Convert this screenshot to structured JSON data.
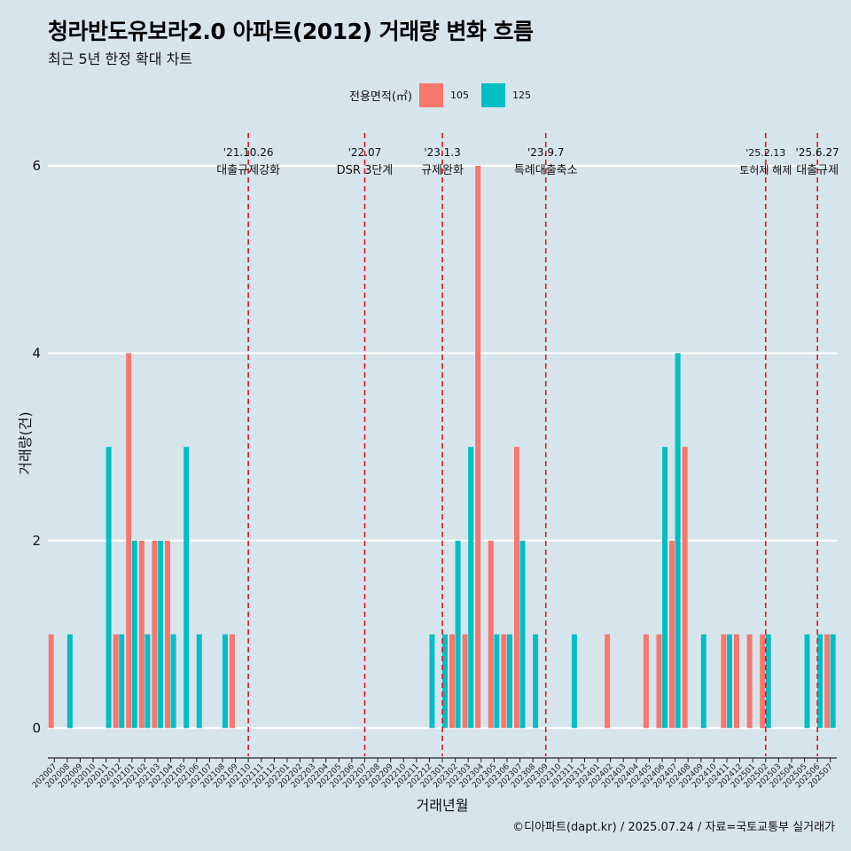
{
  "title": "청라반도유보라2.0 아파트(2012) 거래량 변화 흐름",
  "subtitle": "최근 5년 한정 확대 차트",
  "caption": "©디아파트(dapt.kr) / 2025.07.24 / 자료=국토교통부 실거래가",
  "legend": {
    "title": "전용면적(㎡)",
    "items": [
      {
        "label": "105",
        "color": "#f8766d"
      },
      {
        "label": "125",
        "color": "#00bfc4"
      }
    ]
  },
  "chart_data": {
    "type": "bar",
    "xlabel": "거래년월",
    "ylabel": "거래량(건)",
    "ylim": [
      -0.3,
      6.35
    ],
    "yticks": [
      0,
      2,
      4,
      6
    ],
    "grid": true,
    "legend_position": "top",
    "categories": [
      "202007",
      "202008",
      "202009",
      "202010",
      "202011",
      "202012",
      "202101",
      "202102",
      "202103",
      "202104",
      "202105",
      "202106",
      "202107",
      "202108",
      "202109",
      "202110",
      "202111",
      "202112",
      "202201",
      "202202",
      "202203",
      "202204",
      "202205",
      "202206",
      "202207",
      "202208",
      "202209",
      "202210",
      "202211",
      "202212",
      "202301",
      "202302",
      "202303",
      "202304",
      "202305",
      "202306",
      "202307",
      "202308",
      "202309",
      "202310",
      "202311",
      "202312",
      "202401",
      "202402",
      "202403",
      "202404",
      "202405",
      "202406",
      "202407",
      "202408",
      "202409",
      "202410",
      "202411",
      "202412",
      "202501",
      "202502",
      "202503",
      "202504",
      "202505",
      "202506",
      "202507"
    ],
    "series": [
      {
        "name": "105",
        "color": "#f8766d",
        "values": [
          1,
          0,
          0,
          0,
          0,
          1,
          4,
          2,
          2,
          2,
          0,
          0,
          0,
          0,
          1,
          0,
          0,
          0,
          0,
          0,
          0,
          0,
          0,
          0,
          0,
          0,
          0,
          0,
          0,
          0,
          0,
          1,
          1,
          6,
          2,
          1,
          3,
          0,
          0,
          0,
          0,
          0,
          0,
          1,
          0,
          0,
          1,
          1,
          2,
          3,
          0,
          0,
          1,
          1,
          1,
          1,
          0,
          0,
          0,
          0,
          1
        ]
      },
      {
        "name": "125",
        "color": "#00bfc4",
        "values": [
          0,
          1,
          0,
          0,
          3,
          1,
          2,
          1,
          2,
          1,
          3,
          1,
          0,
          1,
          0,
          0,
          0,
          0,
          0,
          0,
          0,
          0,
          0,
          0,
          0,
          0,
          0,
          0,
          0,
          1,
          1,
          2,
          3,
          0,
          1,
          1,
          2,
          1,
          0,
          0,
          1,
          0,
          0,
          0,
          0,
          0,
          0,
          3,
          4,
          0,
          1,
          0,
          1,
          0,
          0,
          1,
          0,
          0,
          1,
          1,
          1
        ]
      }
    ],
    "events": [
      {
        "date": "'21.10.26",
        "label": "대출규제강화",
        "month": "202110"
      },
      {
        "date": "'22.07",
        "label": "DSR 3단계",
        "month": "202207"
      },
      {
        "date": "'23.1.3",
        "label": "규제완화",
        "month": "202301"
      },
      {
        "date": "'23.9.7",
        "label": "특례대출축소",
        "month": "202309"
      },
      {
        "date": "'25.2.13",
        "label": "토허제 해제",
        "month": "202502"
      },
      {
        "date": "'25.6.27",
        "label": "대출규제",
        "month": "202506"
      }
    ]
  }
}
